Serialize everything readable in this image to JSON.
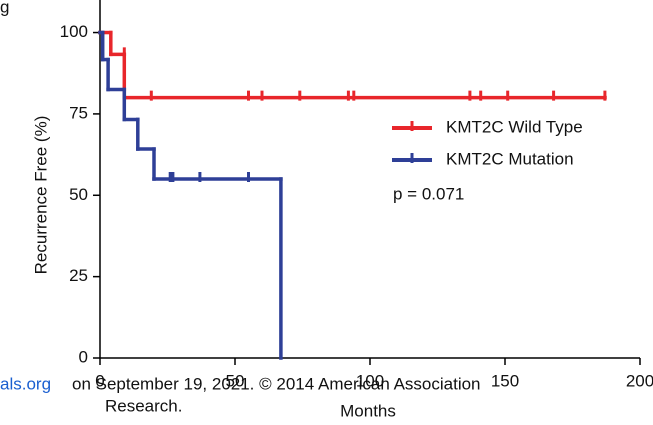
{
  "chart_data": {
    "type": "km",
    "fragment": "g",
    "y_label": "Recurrence Free (%)",
    "x_label": "Months",
    "annotation": "p = 0.071",
    "watermark_link": "als.org",
    "watermark_text": "on September 19, 2021. © 2014 American Association",
    "watermark_line2": "Research.",
    "xlim": [
      0,
      200
    ],
    "xticks": [
      0,
      50,
      100,
      150,
      200
    ],
    "ylim": [
      0,
      110
    ],
    "yticks": [
      0,
      25,
      50,
      75,
      100
    ],
    "series": [
      {
        "name": "KMT2C Wild Type",
        "color": "#e8262b",
        "x": [
          0,
          4,
          9,
          187
        ],
        "values": [
          100,
          93.3,
          80,
          80
        ],
        "censor_x": [
          9,
          19,
          55,
          60,
          74,
          92,
          94,
          137,
          141,
          151,
          168,
          187
        ],
        "censor_values": [
          93.3,
          80,
          80,
          80,
          80,
          80,
          80,
          80,
          80,
          80,
          80,
          80
        ]
      },
      {
        "name": "KMT2C Mutation",
        "color": "#2e3f97",
        "x": [
          0,
          1,
          3,
          9,
          14,
          20,
          67
        ],
        "values": [
          100,
          91.7,
          82.5,
          73.3,
          64.2,
          55,
          0
        ],
        "censor_x": [
          26,
          27,
          37,
          55
        ],
        "censor_values": [
          55,
          55,
          55,
          55
        ]
      }
    ]
  }
}
